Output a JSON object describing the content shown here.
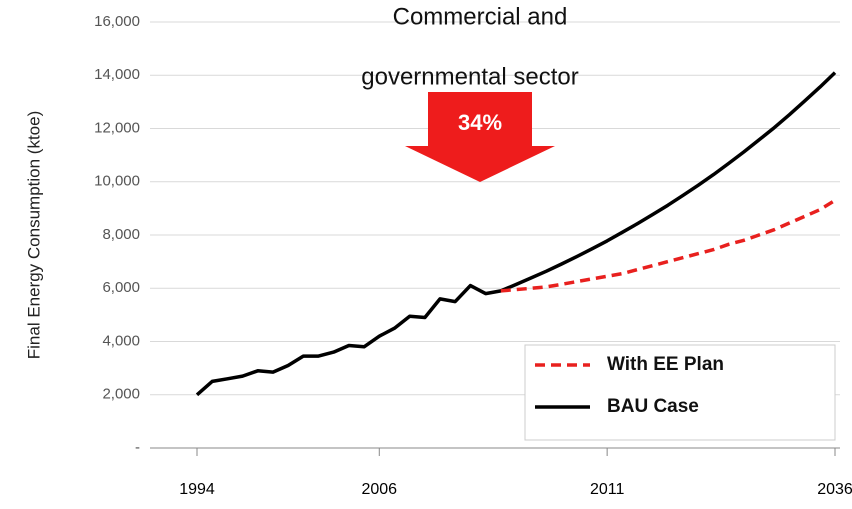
{
  "chart_data": {
    "type": "line",
    "annotations": [
      "Commercial and",
      "governmental sector",
      "34%"
    ],
    "ylabel": "Final Energy Consumption (ktoe)",
    "categories": [
      "1994",
      null,
      null,
      null,
      null,
      null,
      null,
      null,
      null,
      null,
      null,
      null,
      "2006",
      null,
      null,
      null,
      null,
      null,
      null,
      null,
      null,
      null,
      null,
      null,
      null,
      null,
      null,
      "2011",
      null,
      null,
      null,
      null,
      null,
      null,
      null,
      null,
      null,
      null,
      null,
      null,
      null,
      null,
      "2036"
    ],
    "series": [
      {
        "name": "With EE Plan",
        "color": "#e8201e",
        "dashed": true,
        "values": [
          null,
          null,
          null,
          null,
          null,
          null,
          null,
          null,
          null,
          null,
          null,
          null,
          null,
          null,
          null,
          null,
          null,
          null,
          null,
          null,
          5900,
          5950,
          6000,
          6050,
          6150,
          6250,
          6350,
          6450,
          6550,
          6700,
          6850,
          7000,
          7150,
          7300,
          7450,
          7650,
          7800,
          8000,
          8200,
          8450,
          8700,
          8950,
          9300
        ]
      },
      {
        "name": "BAU Case",
        "color": "#000000",
        "dashed": false,
        "values": [
          2000,
          2500,
          2600,
          2700,
          2900,
          2850,
          3100,
          3450,
          3450,
          3600,
          3850,
          3800,
          4200,
          4500,
          4950,
          4900,
          5600,
          5500,
          6100,
          5800,
          5900,
          6140,
          6390,
          6640,
          6910,
          7190,
          7480,
          7780,
          8100,
          8430,
          8770,
          9120,
          9490,
          9870,
          10270,
          10690,
          11120,
          11570,
          12030,
          12520,
          13030,
          13550,
          14100
        ]
      }
    ],
    "ylim": [
      0,
      16000
    ],
    "yticks": [
      {
        "value": 0,
        "label": "-"
      },
      {
        "value": 2000,
        "label": "2,000"
      },
      {
        "value": 4000,
        "label": "4,000"
      },
      {
        "value": 6000,
        "label": "6,000"
      },
      {
        "value": 8000,
        "label": "8,000"
      },
      {
        "value": 10000,
        "label": "10,000"
      },
      {
        "value": 12000,
        "label": "12,000"
      },
      {
        "value": 14000,
        "label": "14,000"
      },
      {
        "value": 16000,
        "label": "16,000"
      }
    ],
    "grid": true,
    "legend": "lower right"
  }
}
